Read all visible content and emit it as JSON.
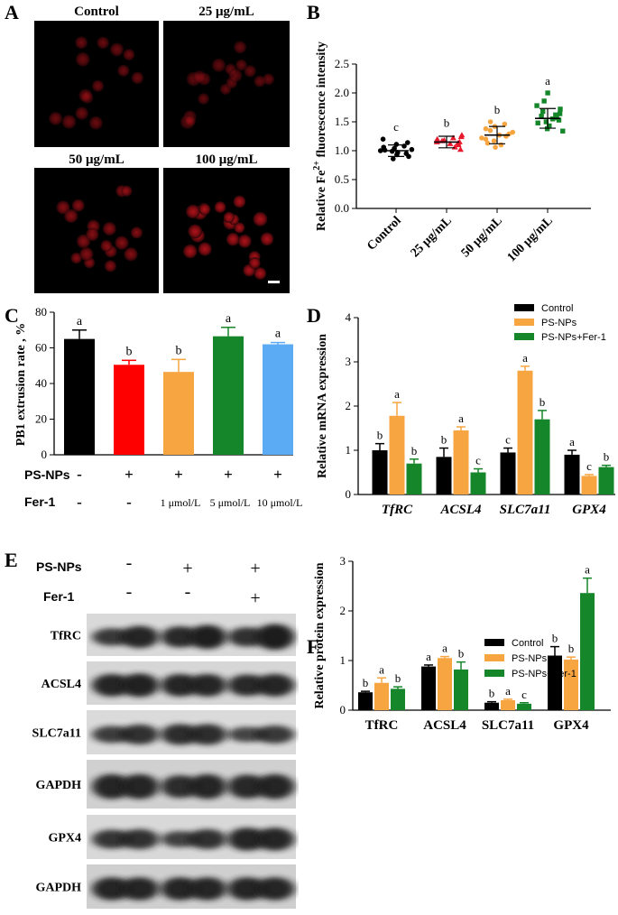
{
  "panels": {
    "A": {
      "letter": "A",
      "labels": [
        "Control",
        "25 μg/mL",
        "50 μg/mL",
        "100 μg/mL"
      ]
    },
    "E": {
      "letter": "E",
      "treatments": [
        "PS-NPs",
        "Fer-1"
      ],
      "signs": [
        [
          "-",
          "+",
          "+"
        ],
        [
          "-",
          "-",
          "+"
        ]
      ],
      "bands": [
        "TfRC",
        "ACSL4",
        "SLC7a11",
        "GAPDH",
        "GPX4",
        "GAPDH"
      ]
    }
  },
  "chart_data": [
    {
      "panel": "B",
      "type": "scatter",
      "ylabel": "Relative Fe²⁺ fluorescence intensity",
      "ylabel_parts": [
        "Relative Fe",
        "2+",
        " fluorescence intensity"
      ],
      "categories": [
        "Control",
        "25 μg/mL",
        "50 μg/mL",
        "100 μg/mL"
      ],
      "ylim": [
        0,
        2.5
      ],
      "yticks": [
        "0.0",
        "0.5",
        "1.0",
        "1.5",
        "2.0",
        "2.5"
      ],
      "colors": [
        "#000000",
        "#e8192c",
        "#f7a541",
        "#16862a"
      ],
      "markers": [
        "circle",
        "triangle",
        "circle",
        "square"
      ],
      "means": [
        1.0,
        1.15,
        1.27,
        1.56
      ],
      "sd": [
        0.1,
        0.1,
        0.15,
        0.17
      ],
      "letters": [
        "c",
        "b",
        "b",
        "a"
      ],
      "points": [
        [
          0.86,
          0.9,
          0.93,
          0.95,
          0.97,
          0.99,
          1.0,
          1.01,
          1.02,
          1.04,
          1.06,
          1.08,
          1.11,
          1.14,
          1.2
        ],
        [
          1.02,
          1.06,
          1.1,
          1.12,
          1.13,
          1.15,
          1.15,
          1.17,
          1.18,
          1.2,
          1.22,
          1.24,
          1.27
        ],
        [
          1.06,
          1.1,
          1.13,
          1.17,
          1.2,
          1.22,
          1.25,
          1.27,
          1.29,
          1.32,
          1.35,
          1.38,
          1.42,
          1.46,
          1.5
        ],
        [
          1.34,
          1.38,
          1.43,
          1.48,
          1.5,
          1.53,
          1.55,
          1.57,
          1.6,
          1.62,
          1.64,
          1.68,
          1.72,
          1.78,
          1.86,
          2.0
        ]
      ]
    },
    {
      "panel": "C",
      "type": "bar",
      "ylabel": "PB1 extrusion rate , %",
      "ylim": [
        0,
        80
      ],
      "yticks": [
        "0",
        "20",
        "40",
        "60",
        "80"
      ],
      "values": [
        65,
        50.5,
        46.5,
        66.5,
        62
      ],
      "errors": [
        5,
        2.5,
        7,
        5,
        1
      ],
      "letters": [
        "a",
        "b",
        "b",
        "a",
        "a"
      ],
      "colors": [
        "#000000",
        "#ff0000",
        "#f7a541",
        "#16862a",
        "#5aaaf4"
      ],
      "treatment_labels": [
        "PS-NPs",
        "Fer-1"
      ],
      "psnps": [
        "-",
        "+",
        "+",
        "+",
        "+"
      ],
      "fer1": [
        "-",
        "-",
        "1 μmol/L",
        "5 μmol/L",
        "10 μmol/L"
      ]
    },
    {
      "panel": "D",
      "type": "bar",
      "ylabel": "Relative mRNA expression",
      "ylim": [
        0,
        4
      ],
      "yticks": [
        "0",
        "1",
        "2",
        "3",
        "4"
      ],
      "categories": [
        "TfRC",
        "ACSL4",
        "SLC7a11",
        "GPX4"
      ],
      "series": [
        {
          "name": "Control",
          "color": "#000000",
          "values": [
            1.0,
            0.85,
            0.95,
            0.9
          ],
          "errors": [
            0.15,
            0.2,
            0.1,
            0.1
          ],
          "letters": [
            "b",
            "b",
            "c",
            "a"
          ]
        },
        {
          "name": "PS-NPs",
          "color": "#f7a541",
          "values": [
            1.78,
            1.45,
            2.8,
            0.42
          ],
          "errors": [
            0.3,
            0.08,
            0.1,
            0.03
          ],
          "letters": [
            "a",
            "a",
            "a",
            "c"
          ]
        },
        {
          "name": "PS-NPs+Fer-1",
          "color": "#16862a",
          "values": [
            0.7,
            0.5,
            1.7,
            0.62
          ],
          "errors": [
            0.1,
            0.08,
            0.2,
            0.04
          ],
          "letters": [
            "b",
            "c",
            "b",
            "b"
          ]
        }
      ]
    },
    {
      "panel": "F",
      "type": "bar",
      "ylabel": "Relative protein expression",
      "ylim": [
        0,
        3
      ],
      "yticks": [
        "0",
        "1",
        "2",
        "3"
      ],
      "categories": [
        "TfRC",
        "ACSL4",
        "SLC7a11",
        "GPX4"
      ],
      "series": [
        {
          "name": "Control",
          "color": "#000000",
          "values": [
            0.36,
            0.88,
            0.15,
            1.1
          ],
          "errors": [
            0.02,
            0.03,
            0.02,
            0.18
          ],
          "letters": [
            "b",
            "a",
            "b",
            "b"
          ]
        },
        {
          "name": "PS-NPs",
          "color": "#f7a541",
          "values": [
            0.55,
            1.05,
            0.2,
            1.02
          ],
          "errors": [
            0.1,
            0.03,
            0.02,
            0.05
          ],
          "letters": [
            "a",
            "a",
            "a",
            "b"
          ]
        },
        {
          "name": "PS-NPs+Fer-1",
          "color": "#16862a",
          "values": [
            0.43,
            0.82,
            0.13,
            2.36
          ],
          "errors": [
            0.04,
            0.15,
            0.02,
            0.3
          ],
          "letters": [
            "b",
            "b",
            "c",
            "a"
          ]
        }
      ]
    }
  ]
}
